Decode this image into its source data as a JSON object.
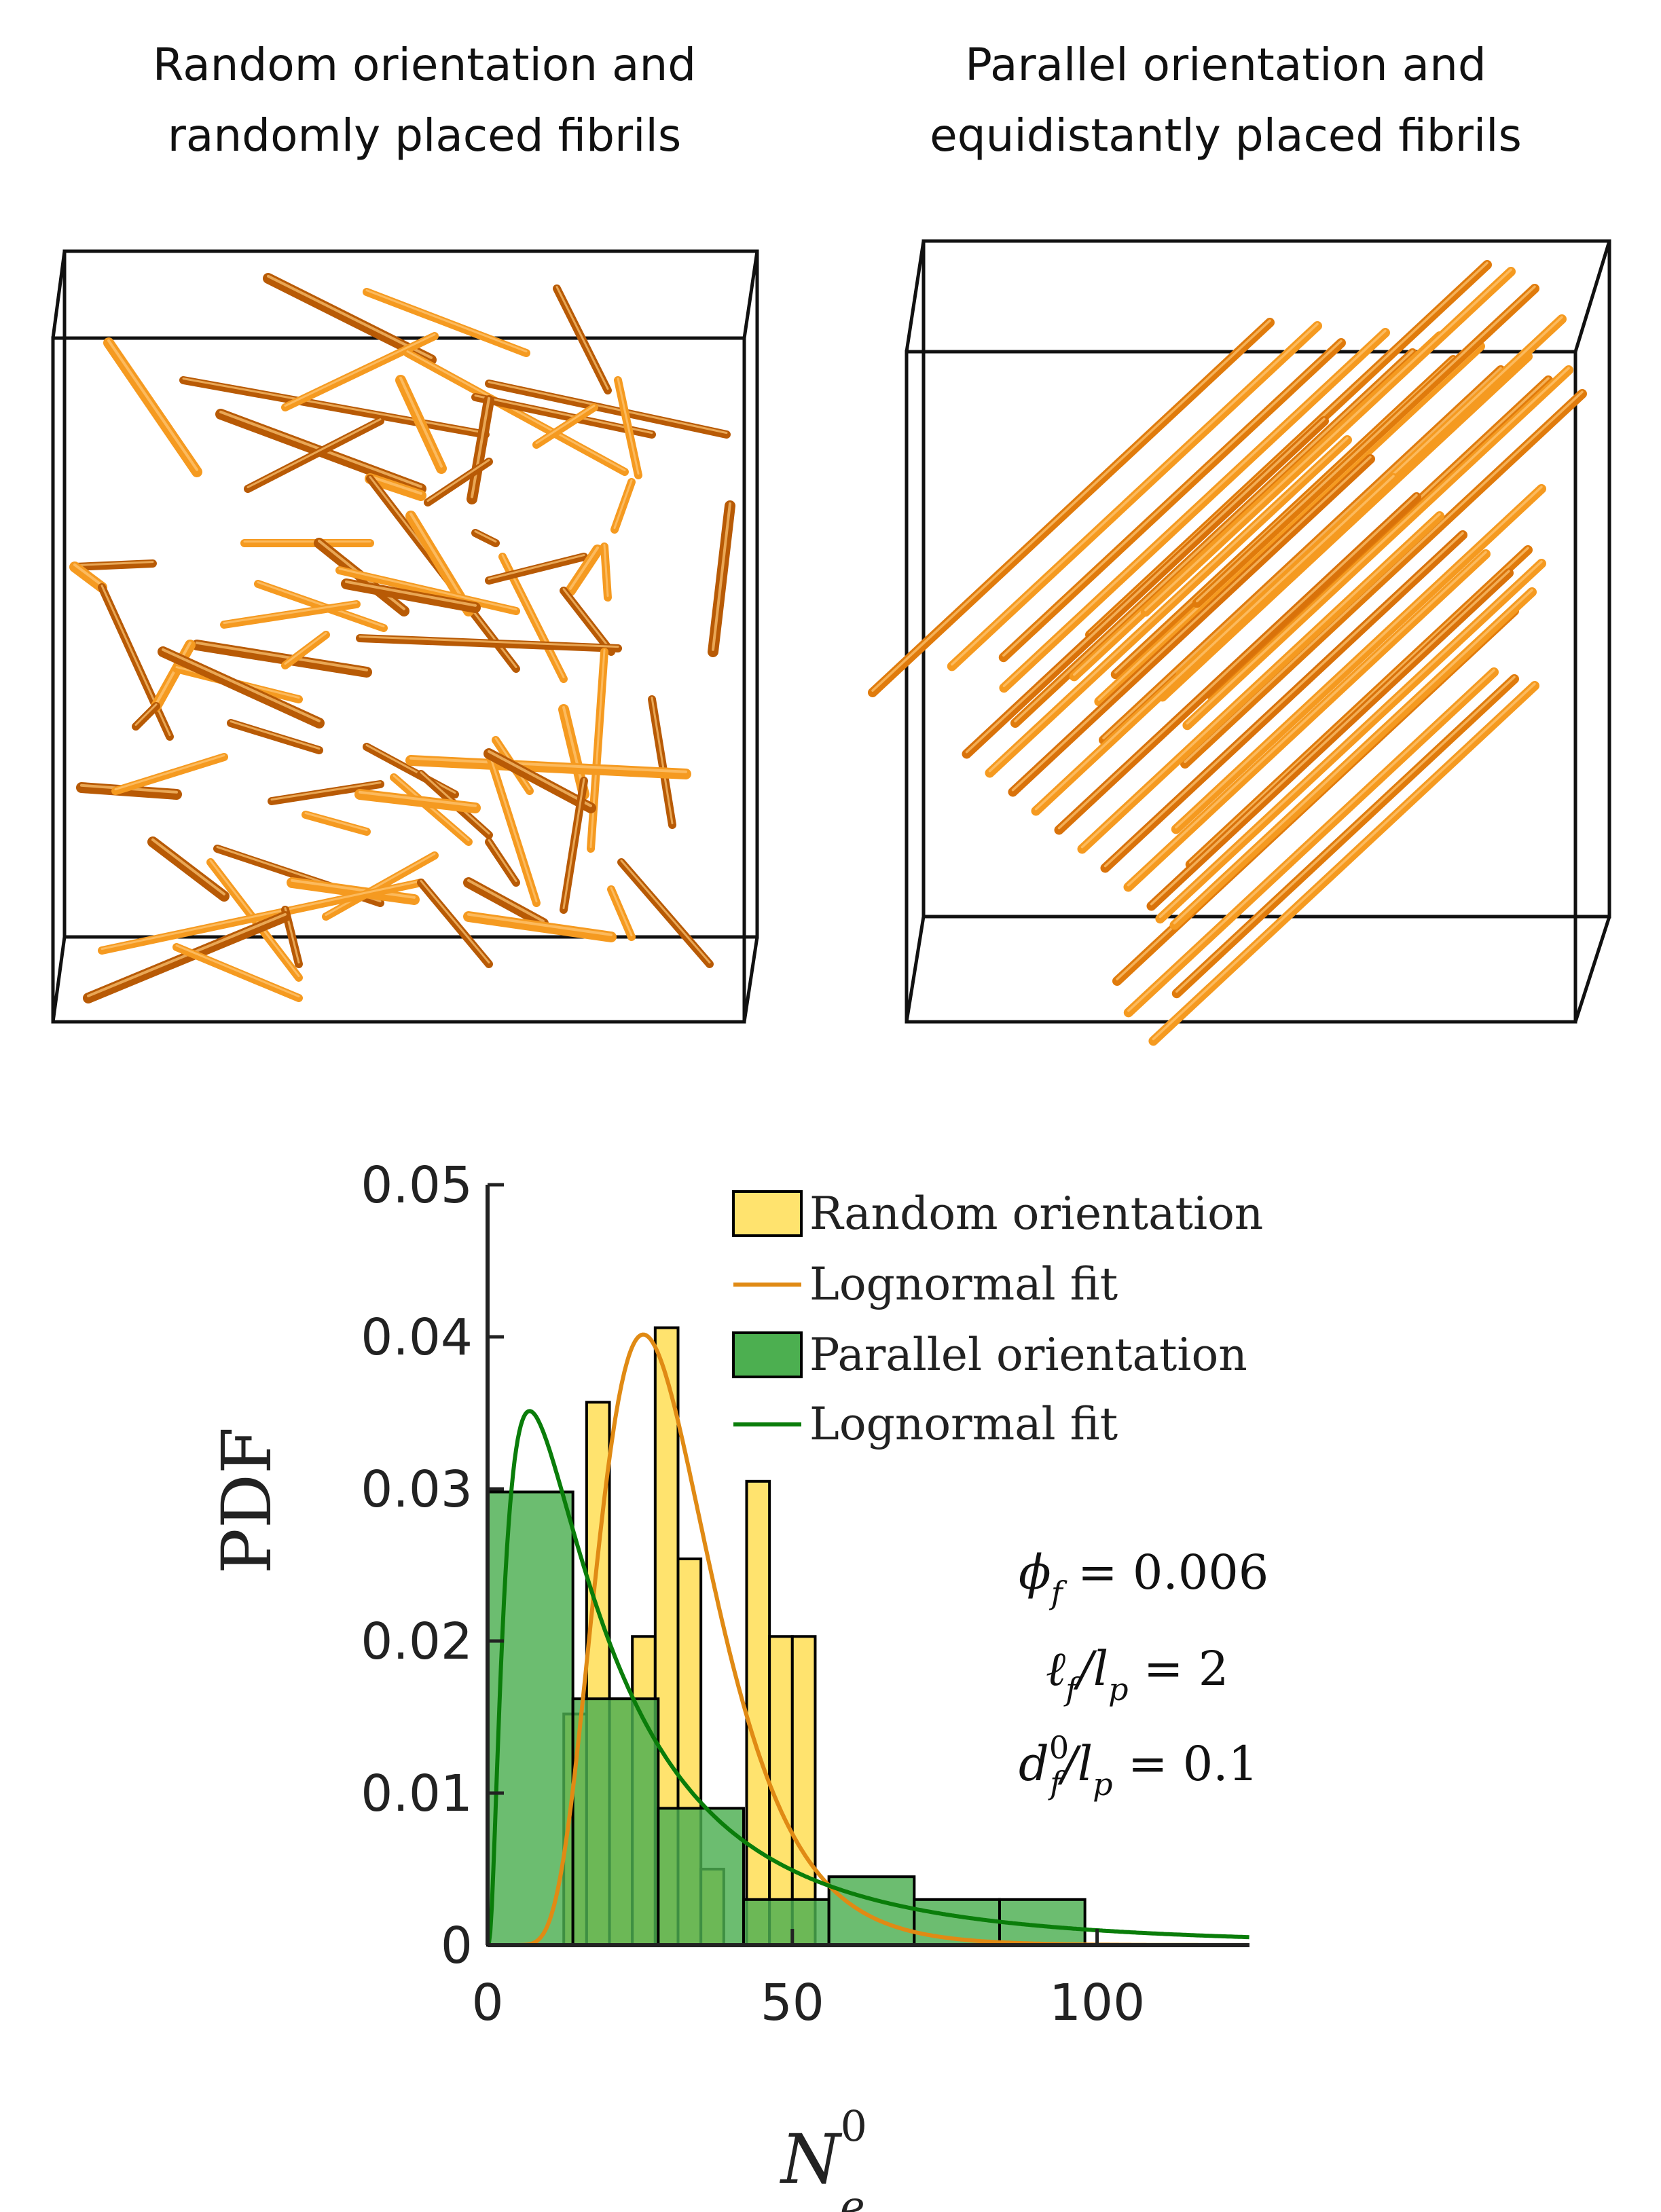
{
  "panels": {
    "left": {
      "title_line1": "Random orientation and",
      "title_line2": "randomly placed fibrils"
    },
    "right": {
      "title_line1": "Parallel orientation and",
      "title_line2": "equidistantly placed fibrils"
    }
  },
  "colors": {
    "random_bar": "#ffe36e",
    "random_fit": "#e08a14",
    "parallel_bar": "#4caf50",
    "parallel_fit": "#0a7d0a",
    "fibril_light": "#f59a20",
    "fibril_dark": "#b85a05"
  },
  "chart_data": {
    "type": "bar",
    "ylabel": "PDF",
    "xlabel_base": "N",
    "xlabel_sub": "e",
    "xlabel_sup": "0",
    "xlim": [
      0,
      125
    ],
    "ylim": [
      0,
      0.05
    ],
    "x_ticks": [
      0,
      50,
      100
    ],
    "x_tick_labels": [
      "0",
      "50",
      "100"
    ],
    "y_ticks": [
      0,
      0.01,
      0.02,
      0.03,
      0.04,
      0.05
    ],
    "y_tick_labels": [
      "0",
      "0.01",
      "0.02",
      "0.03",
      "0.04",
      "0.05"
    ],
    "series": [
      {
        "name": "Random orientation",
        "kind": "histogram",
        "bins": [
          {
            "x0": 12.5,
            "x1": 16.25,
            "y": 0.0152
          },
          {
            "x0": 16.25,
            "x1": 20.0,
            "y": 0.0357
          },
          {
            "x0": 20.0,
            "x1": 23.75,
            "y": 0.0162
          },
          {
            "x0": 23.75,
            "x1": 27.5,
            "y": 0.0203
          },
          {
            "x0": 27.5,
            "x1": 31.25,
            "y": 0.0406
          },
          {
            "x0": 31.25,
            "x1": 35.0,
            "y": 0.0254
          },
          {
            "x0": 35.0,
            "x1": 38.75,
            "y": 0.005
          },
          {
            "x0": 38.75,
            "x1": 42.5,
            "y": 0.0
          },
          {
            "x0": 42.5,
            "x1": 46.25,
            "y": 0.0305
          },
          {
            "x0": 46.25,
            "x1": 50.0,
            "y": 0.0203
          },
          {
            "x0": 50.0,
            "x1": 53.75,
            "y": 0.0203
          }
        ]
      },
      {
        "name": "Lognormal fit",
        "kind": "lognormal",
        "mu": 3.373,
        "sigma": 0.364
      },
      {
        "name": "Parallel orientation",
        "kind": "histogram",
        "bins": [
          {
            "x0": 0.0,
            "x1": 14.0,
            "y": 0.0298
          },
          {
            "x0": 14.0,
            "x1": 28.0,
            "y": 0.0162
          },
          {
            "x0": 28.0,
            "x1": 42.0,
            "y": 0.009
          },
          {
            "x0": 42.0,
            "x1": 56.0,
            "y": 0.003
          },
          {
            "x0": 56.0,
            "x1": 70.0,
            "y": 0.0045
          },
          {
            "x0": 70.0,
            "x1": 84.0,
            "y": 0.003
          },
          {
            "x0": 84.0,
            "x1": 98.0,
            "y": 0.003
          }
        ]
      },
      {
        "name": "Lognormal fit",
        "kind": "lognormal",
        "mu": 2.93,
        "sigma": 1.0
      }
    ],
    "legend": {
      "position": "top-right",
      "entries": [
        "Random orientation",
        "Lognormal fit",
        "Parallel orientation",
        "Lognormal fit"
      ]
    },
    "annotations": {
      "phi_line": "ϕf = 0.006",
      "lf_line": "ℓf/lp = 2",
      "df_line": "df0/lp = 0.1",
      "phi_sym": "ϕ",
      "phi_sub": "f",
      "phi_val": " = 0.006",
      "lf_sym": "ℓ",
      "lf_sub": "f",
      "lf_mid": "/l",
      "lf_sub2": "p",
      "lf_val": " = 2",
      "df_sym": "d",
      "df_sub": "f",
      "df_sup": "0",
      "df_mid": "/l",
      "df_sub2": "p",
      "df_val": " = 0.1"
    }
  }
}
